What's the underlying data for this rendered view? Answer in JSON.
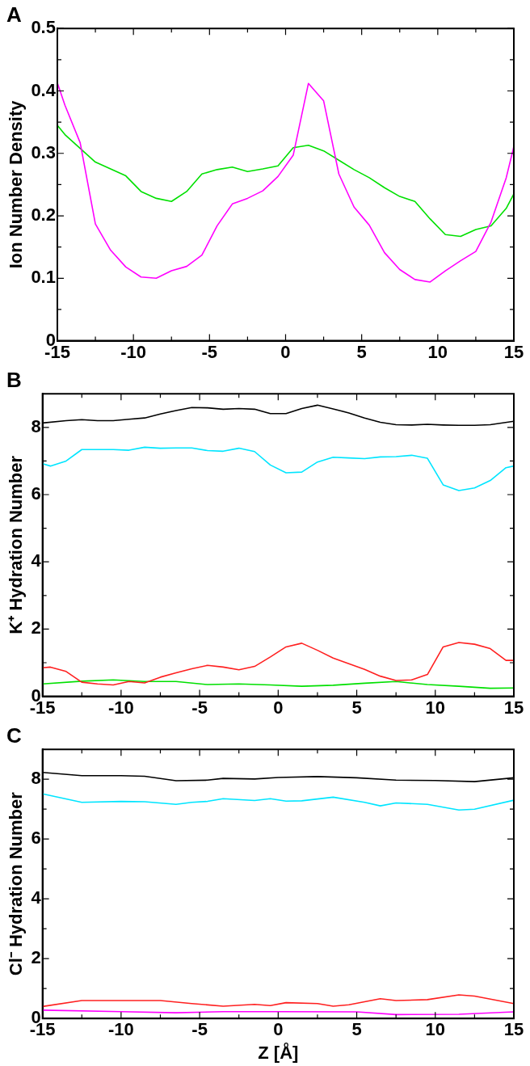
{
  "chart_data": [
    {
      "type": "line",
      "title": "A",
      "ylabel": "Ion Number Density",
      "marker": "none",
      "xlim": [
        -15,
        15
      ],
      "ylim": [
        0,
        0.5
      ],
      "xticks": [
        -15,
        {
          "value": -12.5,
          "label": null
        },
        -10,
        {
          "value": -7.5,
          "label": null
        },
        -5,
        {
          "value": -2.5,
          "label": null
        },
        0,
        {
          "value": 2.5,
          "label": null
        },
        5,
        {
          "value": 7.5,
          "label": null
        },
        10,
        {
          "value": 12.5,
          "label": null
        },
        15
      ],
      "yticks": [
        0,
        {
          "value": 0.05,
          "label": null
        },
        0.1,
        {
          "value": 0.15,
          "label": null
        },
        0.2,
        {
          "value": 0.25,
          "label": null
        },
        0.3,
        {
          "value": 0.35,
          "label": null
        },
        0.4,
        {
          "value": 0.45,
          "label": null
        },
        0.5
      ],
      "series": [
        {
          "color": "#ff00ff",
          "x": [
            -15,
            -14.5,
            -13.5,
            -12.5,
            -11.5,
            -10.5,
            -9.5,
            -8.5,
            -7.5,
            -6.5,
            -5.5,
            -4.5,
            -3.5,
            -2.5,
            -1.5,
            -0.5,
            0.5,
            1.5,
            2.5,
            3.5,
            4.5,
            5.5,
            6.5,
            7.5,
            8.5,
            9.5,
            10.5,
            11.5,
            12.5,
            13.5,
            14.5,
            15
          ],
          "values": [
            0.413,
            0.377,
            0.317,
            0.187,
            0.145,
            0.118,
            0.102,
            0.1,
            0.112,
            0.119,
            0.137,
            0.184,
            0.219,
            0.228,
            0.24,
            0.263,
            0.297,
            0.412,
            0.384,
            0.267,
            0.214,
            0.185,
            0.141,
            0.114,
            0.098,
            0.094,
            0.112,
            0.128,
            0.143,
            0.19,
            0.261,
            0.311
          ]
        },
        {
          "color": "#00e000",
          "x": [
            -15,
            -14.5,
            -13.5,
            -12.5,
            -11.5,
            -10.5,
            -9.5,
            -8.5,
            -7.5,
            -6.5,
            -5.5,
            -4.5,
            -3.5,
            -2.5,
            -1.5,
            -0.5,
            0.5,
            1.5,
            2.5,
            3.5,
            4.5,
            5.5,
            6.5,
            7.5,
            8.5,
            9.5,
            10.5,
            11.5,
            12.5,
            13.5,
            14.5,
            15
          ],
          "values": [
            0.345,
            0.33,
            0.308,
            0.286,
            0.275,
            0.264,
            0.239,
            0.228,
            0.223,
            0.239,
            0.267,
            0.274,
            0.278,
            0.271,
            0.275,
            0.28,
            0.309,
            0.313,
            0.304,
            0.289,
            0.274,
            0.261,
            0.245,
            0.231,
            0.223,
            0.195,
            0.17,
            0.167,
            0.178,
            0.184,
            0.212,
            0.235
          ]
        }
      ]
    },
    {
      "type": "line",
      "title": "B",
      "ylabel": "K⁺ Hydration Number",
      "marker": "none",
      "xlim": [
        -15,
        15
      ],
      "ylim": [
        0,
        9
      ],
      "xticks": [
        -15,
        {
          "value": -12.5,
          "label": null
        },
        -10,
        {
          "value": -7.5,
          "label": null
        },
        -5,
        {
          "value": -2.5,
          "label": null
        },
        0,
        {
          "value": 2.5,
          "label": null
        },
        5,
        {
          "value": 7.5,
          "label": null
        },
        10,
        {
          "value": 12.5,
          "label": null
        },
        15
      ],
      "yticks": [
        0,
        {
          "value": 1,
          "label": null
        },
        2,
        {
          "value": 3,
          "label": null
        },
        4,
        {
          "value": 5,
          "label": null
        },
        6,
        {
          "value": 7,
          "label": null
        },
        8
      ],
      "series": [
        {
          "color": "#000000",
          "x": [
            -15,
            -13.5,
            -12.5,
            -11.5,
            -10.5,
            -9.5,
            -8.5,
            -7.5,
            -6.5,
            -5.5,
            -4.5,
            -3.5,
            -2.5,
            -1.5,
            -0.5,
            0.5,
            1.5,
            2.5,
            3.5,
            4.5,
            5.5,
            6.5,
            7.5,
            8.5,
            9.5,
            10.5,
            11.5,
            12.5,
            13.5,
            15
          ],
          "values": [
            8.13,
            8.2,
            8.23,
            8.2,
            8.2,
            8.24,
            8.28,
            8.4,
            8.5,
            8.59,
            8.58,
            8.54,
            8.56,
            8.54,
            8.41,
            8.41,
            8.56,
            8.66,
            8.55,
            8.43,
            8.28,
            8.15,
            8.08,
            8.07,
            8.09,
            8.07,
            8.06,
            8.06,
            8.08,
            8.18
          ]
        },
        {
          "color": "#00e5ff",
          "x": [
            -15,
            -14.5,
            -13.5,
            -12.5,
            -11.5,
            -10.5,
            -9.5,
            -8.5,
            -7.5,
            -6.5,
            -5.5,
            -4.5,
            -3.5,
            -2.5,
            -1.5,
            -0.5,
            0.5,
            1.5,
            2.5,
            3.5,
            4.5,
            5.5,
            6.5,
            7.5,
            8.5,
            9.5,
            10.5,
            11.5,
            12.5,
            13.5,
            14.5,
            15
          ],
          "values": [
            6.92,
            6.85,
            7.0,
            7.34,
            7.34,
            7.34,
            7.32,
            7.41,
            7.38,
            7.39,
            7.39,
            7.31,
            7.29,
            7.38,
            7.28,
            6.88,
            6.65,
            6.67,
            6.97,
            7.11,
            7.09,
            7.07,
            7.12,
            7.13,
            7.17,
            7.08,
            6.29,
            6.12,
            6.2,
            6.42,
            6.8,
            6.85
          ]
        },
        {
          "color": "#ff2020",
          "x": [
            -15,
            -14.5,
            -13.5,
            -12.5,
            -11.5,
            -10.5,
            -9.5,
            -8.5,
            -7.5,
            -6.5,
            -5.5,
            -4.5,
            -3.5,
            -2.5,
            -1.5,
            -0.5,
            0.5,
            1.5,
            2.5,
            3.5,
            4.5,
            5.5,
            6.5,
            7.5,
            8.5,
            9.5,
            10.5,
            11.5,
            12.5,
            13.5,
            14.5,
            15
          ],
          "values": [
            0.85,
            0.87,
            0.74,
            0.42,
            0.37,
            0.34,
            0.44,
            0.4,
            0.57,
            0.7,
            0.82,
            0.92,
            0.87,
            0.79,
            0.89,
            1.17,
            1.47,
            1.58,
            1.37,
            1.14,
            0.97,
            0.8,
            0.6,
            0.47,
            0.49,
            0.65,
            1.47,
            1.6,
            1.55,
            1.42,
            1.07,
            1.07
          ]
        },
        {
          "color": "#00e000",
          "x": [
            -15,
            -12.5,
            -10.5,
            -8.5,
            -6.5,
            -4.5,
            -2.5,
            -0.5,
            1.5,
            3.5,
            5.5,
            7.5,
            9.5,
            11.5,
            13.5,
            15
          ],
          "values": [
            0.37,
            0.45,
            0.49,
            0.44,
            0.44,
            0.35,
            0.37,
            0.34,
            0.3,
            0.33,
            0.39,
            0.44,
            0.35,
            0.3,
            0.24,
            0.25
          ]
        }
      ]
    },
    {
      "type": "line",
      "title": "C",
      "xlabel": "Z [Å]",
      "ylabel": "Cl⁻ Hydration Number",
      "marker": "none",
      "xlim": [
        -15,
        15
      ],
      "ylim": [
        0,
        9
      ],
      "xticks": [
        -15,
        {
          "value": -12.5,
          "label": null
        },
        -10,
        {
          "value": -7.5,
          "label": null
        },
        -5,
        {
          "value": -2.5,
          "label": null
        },
        0,
        {
          "value": 2.5,
          "label": null
        },
        5,
        {
          "value": 7.5,
          "label": null
        },
        10,
        {
          "value": 12.5,
          "label": null
        },
        15
      ],
      "yticks": [
        0,
        {
          "value": 1,
          "label": null
        },
        2,
        {
          "value": 3,
          "label": null
        },
        4,
        {
          "value": 5,
          "label": null
        },
        6,
        {
          "value": 7,
          "label": null
        },
        8
      ],
      "series": [
        {
          "color": "#000000",
          "x": [
            -15,
            -12.5,
            -10,
            -8.5,
            -6.5,
            -4.5,
            -3.5,
            -1.5,
            0,
            2.5,
            5,
            7.5,
            10,
            12.5,
            15
          ],
          "values": [
            8.23,
            8.12,
            8.12,
            8.1,
            7.95,
            7.97,
            8.03,
            8.01,
            8.06,
            8.09,
            8.05,
            7.97,
            7.96,
            7.92,
            8.05
          ]
        },
        {
          "color": "#00e5ff",
          "x": [
            -15,
            -12.5,
            -10,
            -8.5,
            -6.5,
            -5.5,
            -4.5,
            -3.5,
            -1.5,
            -0.5,
            0.5,
            1.5,
            3.5,
            5.5,
            6.5,
            7.5,
            9.5,
            11.5,
            12.5,
            15
          ],
          "values": [
            7.51,
            7.23,
            7.26,
            7.25,
            7.16,
            7.23,
            7.26,
            7.35,
            7.29,
            7.35,
            7.27,
            7.28,
            7.4,
            7.23,
            7.11,
            7.21,
            7.16,
            6.97,
            7.0,
            7.3
          ]
        },
        {
          "color": "#ff2020",
          "x": [
            -15,
            -12.5,
            -10,
            -7.5,
            -5.5,
            -3.5,
            -1.5,
            -0.5,
            0.5,
            2.5,
            3.5,
            4.5,
            6.5,
            7.5,
            9.5,
            11.5,
            12.5,
            15
          ],
          "values": [
            0.4,
            0.6,
            0.6,
            0.6,
            0.5,
            0.41,
            0.47,
            0.43,
            0.53,
            0.5,
            0.41,
            0.46,
            0.66,
            0.6,
            0.63,
            0.79,
            0.75,
            0.5
          ]
        },
        {
          "color": "#ff00ff",
          "x": [
            -15,
            -10,
            -6.5,
            -3.5,
            0,
            5,
            7.5,
            11.5,
            15
          ],
          "values": [
            0.28,
            0.23,
            0.19,
            0.23,
            0.23,
            0.22,
            0.13,
            0.14,
            0.22
          ]
        }
      ]
    }
  ]
}
